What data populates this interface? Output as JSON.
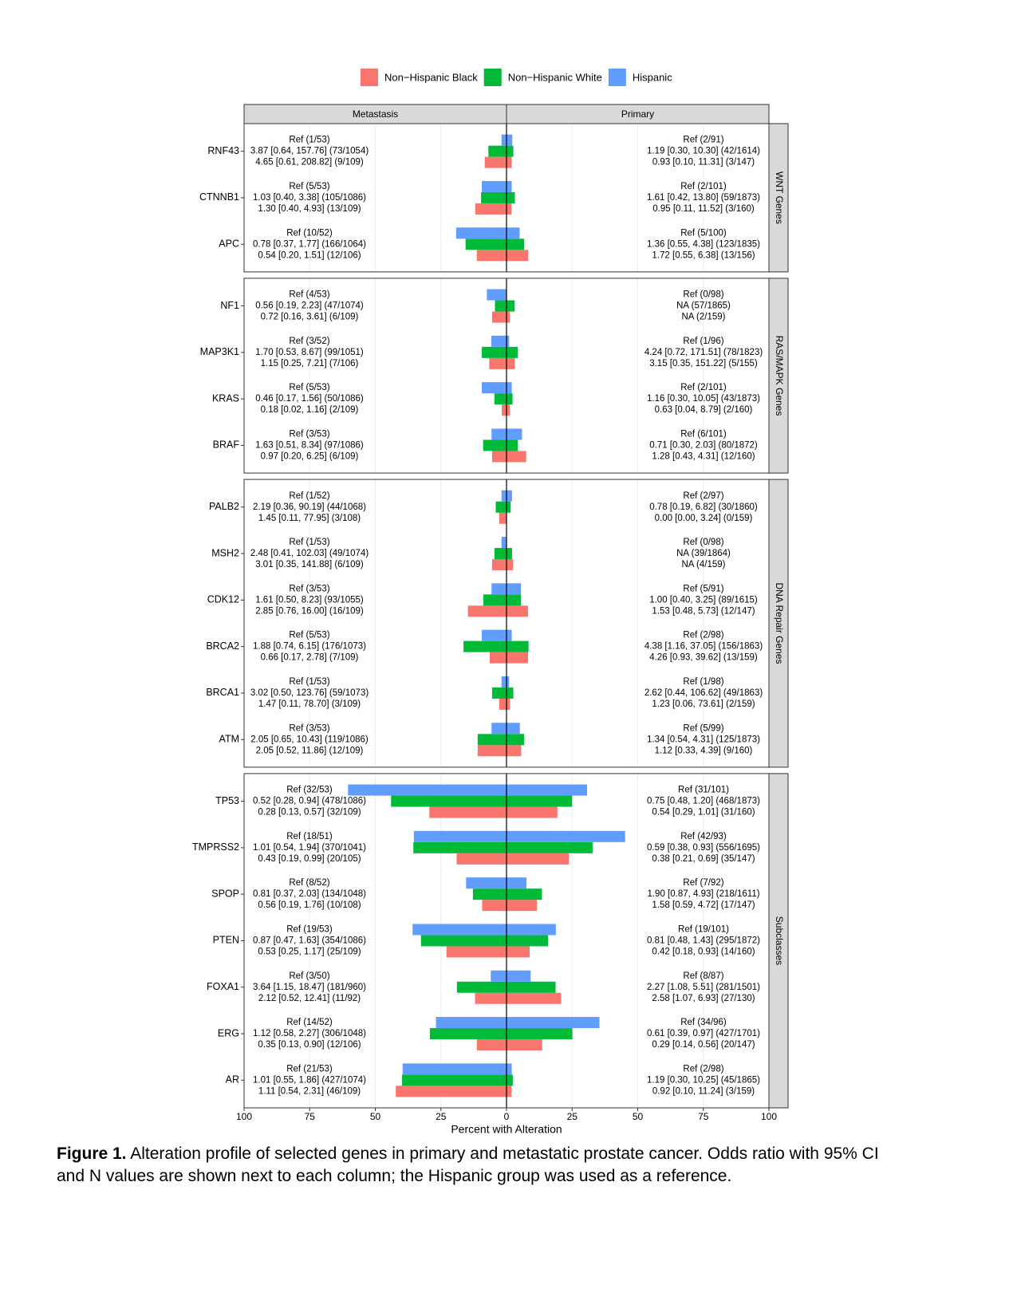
{
  "chart_data": {
    "type": "bar",
    "orientation": "horizontal",
    "legend": "top",
    "grid": true,
    "xlabel": "Percent with Alteration",
    "series": [
      {
        "name": "Non−Hispanic Black",
        "color": "#F8766D"
      },
      {
        "name": "Non−Hispanic White",
        "color": "#00BA38"
      },
      {
        "name": "Hispanic",
        "color": "#619CFF"
      }
    ],
    "columns": [
      {
        "name": "Metastasis",
        "xlim": [
          100,
          0
        ],
        "xticks": [
          100,
          75,
          50,
          25
        ]
      },
      {
        "name": "Primary",
        "xlim": [
          0,
          100
        ],
        "xticks": [
          0,
          25,
          50,
          75,
          100
        ]
      }
    ],
    "panels": [
      {
        "name": "WNT Genes",
        "genes": [
          {
            "name": "RNF43",
            "values": [
              [
                8.3,
                6.9,
                1.9
              ],
              [
                2.0,
                2.6,
                2.2
              ]
            ],
            "labels": [
              [
                "Ref (1/53)",
                "3.87 [0.64, 157.76] (73/1054)",
                "4.65 [0.61, 208.82] (9/109)"
              ],
              [
                "Ref (2/91)",
                "1.19 [0.30, 10.30] (42/1614)",
                "0.93 [0.10, 11.31] (3/147)"
              ]
            ]
          },
          {
            "name": "CTNNB1",
            "values": [
              [
                11.9,
                9.7,
                9.4
              ],
              [
                1.9,
                3.2,
                2.0
              ]
            ],
            "labels": [
              [
                "Ref (5/53)",
                "1.03 [0.40, 3.38] (105/1086)",
                "1.30 [0.40, 4.93] (13/109)"
              ],
              [
                "Ref (2/101)",
                "1.61 [0.42, 13.80] (59/1873)",
                "0.95 [0.11, 11.52] (3/160)"
              ]
            ]
          },
          {
            "name": "APC",
            "values": [
              [
                11.3,
                15.6,
                19.2
              ],
              [
                8.3,
                6.7,
                5.0
              ]
            ],
            "labels": [
              [
                "Ref (10/52)",
                "0.78 [0.37, 1.77] (166/1064)",
                "0.54 [0.20, 1.51] (12/106)"
              ],
              [
                "Ref (5/100)",
                "1.36 [0.55, 4.38] (123/1835)",
                "1.72 [0.55, 6.38] (13/156)"
              ]
            ]
          }
        ]
      },
      {
        "name": "RAS/MAPK Genes",
        "genes": [
          {
            "name": "NF1",
            "values": [
              [
                5.5,
                4.4,
                7.5
              ],
              [
                1.3,
                3.1,
                0
              ]
            ],
            "labels": [
              [
                "Ref (4/53)",
                "0.56 [0.19, 2.23] (47/1074)",
                "0.72 [0.16, 3.61] (6/109)"
              ],
              [
                "Ref (0/98)",
                "NA (57/1865)",
                "NA (2/159)"
              ]
            ]
          },
          {
            "name": "MAP3K1",
            "values": [
              [
                6.6,
                9.4,
                5.8
              ],
              [
                3.2,
                4.3,
                1.0
              ]
            ],
            "labels": [
              [
                "Ref (3/52)",
                "1.70 [0.53, 8.67] (99/1051)",
                "1.15 [0.25, 7.21] (7/106)"
              ],
              [
                "Ref (1/96)",
                "4.24 [0.72, 171.51] (78/1823)",
                "3.15 [0.35, 151.22] (5/155)"
              ]
            ]
          },
          {
            "name": "KRAS",
            "values": [
              [
                1.8,
                4.6,
                9.4
              ],
              [
                1.3,
                2.3,
                2.0
              ]
            ],
            "labels": [
              [
                "Ref (5/53)",
                "0.46 [0.17, 1.56] (50/1086)",
                "0.18 [0.02, 1.16] (2/109)"
              ],
              [
                "Ref (2/101)",
                "1.16 [0.30, 10.05] (43/1873)",
                "0.63 [0.04, 8.79] (2/160)"
              ]
            ]
          },
          {
            "name": "BRAF",
            "values": [
              [
                5.5,
                8.9,
                5.7
              ],
              [
                7.5,
                4.3,
                5.9
              ]
            ],
            "labels": [
              [
                "Ref (3/53)",
                "1.63 [0.51, 8.34] (97/1086)",
                "0.97 [0.20, 6.25] (6/109)"
              ],
              [
                "Ref (6/101)",
                "0.71 [0.30, 2.03] (80/1872)",
                "1.28 [0.43, 4.31] (12/160)"
              ]
            ]
          }
        ]
      },
      {
        "name": "DNA Repair Genes",
        "genes": [
          {
            "name": "PALB2",
            "values": [
              [
                2.8,
                4.1,
                1.9
              ],
              [
                0,
                1.6,
                2.1
              ]
            ],
            "labels": [
              [
                "Ref (1/52)",
                "2.19 [0.36, 90.19] (44/1068)",
                "1.45 [0.11, 77.95] (3/108)"
              ],
              [
                "Ref (2/97)",
                "0.78 [0.19, 6.82] (30/1860)",
                "0.00 [0.00, 3.24] (0/159)"
              ]
            ]
          },
          {
            "name": "MSH2",
            "values": [
              [
                5.5,
                4.6,
                1.9
              ],
              [
                2.5,
                2.1,
                0
              ]
            ],
            "labels": [
              [
                "Ref (1/53)",
                "2.48 [0.41, 102.03] (49/1074)",
                "3.01 [0.35, 141.88] (6/109)"
              ],
              [
                "Ref (0/98)",
                "NA (39/1864)",
                "NA (4/159)"
              ]
            ]
          },
          {
            "name": "CDK12",
            "values": [
              [
                14.7,
                8.8,
                5.7
              ],
              [
                8.2,
                5.5,
                5.5
              ]
            ],
            "labels": [
              [
                "Ref (3/53)",
                "1.61 [0.50, 8.23] (93/1055)",
                "2.85 [0.76, 16.00] (16/109)"
              ],
              [
                "Ref (5/91)",
                "1.00 [0.40, 3.25] (89/1615)",
                "1.53 [0.48, 5.73] (12/147)"
              ]
            ]
          },
          {
            "name": "BRCA2",
            "values": [
              [
                6.4,
                16.4,
                9.4
              ],
              [
                8.2,
                8.4,
                2.0
              ]
            ],
            "labels": [
              [
                "Ref (5/53)",
                "1.88 [0.74, 6.15] (176/1073)",
                "0.66 [0.17, 2.78] (7/109)"
              ],
              [
                "Ref (2/98)",
                "4.38 [1.16, 37.05] (156/1863)",
                "4.26 [0.93, 39.62] (13/159)"
              ]
            ]
          },
          {
            "name": "BRCA1",
            "values": [
              [
                2.8,
                5.5,
                1.9
              ],
              [
                1.3,
                2.6,
                1.0
              ]
            ],
            "labels": [
              [
                "Ref (1/53)",
                "3.02 [0.50, 123.76] (59/1073)",
                "1.47 [0.11, 78.70] (3/109)"
              ],
              [
                "Ref (1/98)",
                "2.62 [0.44, 106.62] (49/1863)",
                "1.23 [0.06, 73.61] (2/159)"
              ]
            ]
          },
          {
            "name": "ATM",
            "values": [
              [
                11.0,
                11.0,
                5.7
              ],
              [
                5.6,
                6.7,
                5.1
              ]
            ],
            "labels": [
              [
                "Ref (3/53)",
                "2.05 [0.65, 10.43] (119/1086)",
                "2.05 [0.52, 11.86] (12/109)"
              ],
              [
                "Ref (5/99)",
                "1.34 [0.54, 4.31] (125/1873)",
                "1.12 [0.33, 4.39] (9/160)"
              ]
            ]
          }
        ]
      },
      {
        "name": "Subclasses",
        "genes": [
          {
            "name": "TP53",
            "values": [
              [
                29.4,
                44.0,
                60.4
              ],
              [
                19.4,
                25.0,
                30.7
              ]
            ],
            "labels": [
              [
                "Ref (32/53)",
                "0.52 [0.28, 0.94] (478/1086)",
                "0.28 [0.13, 0.57] (32/109)"
              ],
              [
                "Ref (31/101)",
                "0.75 [0.48, 1.20] (468/1873)",
                "0.54 [0.29, 1.01] (31/160)"
              ]
            ]
          },
          {
            "name": "TMPRSS2",
            "values": [
              [
                19.0,
                35.5,
                35.3
              ],
              [
                23.8,
                32.8,
                45.2
              ]
            ],
            "labels": [
              [
                "Ref (18/51)",
                "1.01 [0.54, 1.94] (370/1041)",
                "0.43 [0.19, 0.99] (20/105)"
              ],
              [
                "Ref (42/93)",
                "0.59 [0.38, 0.93] (556/1695)",
                "0.38 [0.21, 0.69] (35/147)"
              ]
            ]
          },
          {
            "name": "SPOP",
            "values": [
              [
                9.3,
                12.8,
                15.4
              ],
              [
                11.6,
                13.5,
                7.6
              ]
            ],
            "labels": [
              [
                "Ref (8/52)",
                "0.81 [0.37, 2.03] (134/1048)",
                "0.56 [0.19, 1.76] (10/108)"
              ],
              [
                "Ref (7/92)",
                "1.90 [0.87, 4.93] (218/1611)",
                "1.58 [0.59, 4.72] (17/147)"
              ]
            ]
          },
          {
            "name": "PTEN",
            "values": [
              [
                22.9,
                32.6,
                35.8
              ],
              [
                8.8,
                15.8,
                18.8
              ]
            ],
            "labels": [
              [
                "Ref (19/53)",
                "0.87 [0.47, 1.63] (354/1086)",
                "0.53 [0.25, 1.17] (25/109)"
              ],
              [
                "Ref (19/101)",
                "0.81 [0.48, 1.43] (295/1872)",
                "0.42 [0.18, 0.93] (14/160)"
              ]
            ]
          },
          {
            "name": "FOXA1",
            "values": [
              [
                12.0,
                18.9,
                6.0
              ],
              [
                20.8,
                18.7,
                9.2
              ]
            ],
            "labels": [
              [
                "Ref (3/50)",
                "3.64 [1.15, 18.47] (181/960)",
                "2.12 [0.52, 12.41] (11/92)"
              ],
              [
                "Ref (8/87)",
                "2.27 [1.08, 5.51] (281/1501)",
                "2.58 [1.07, 6.93] (27/130)"
              ]
            ]
          },
          {
            "name": "ERG",
            "values": [
              [
                11.3,
                29.2,
                26.9
              ],
              [
                13.6,
                25.1,
                35.4
              ]
            ],
            "labels": [
              [
                "Ref (14/52)",
                "1.12 [0.58, 2.27] (306/1048)",
                "0.35 [0.13, 0.90] (12/106)"
              ],
              [
                "Ref (34/96)",
                "0.61 [0.39, 0.97] (427/1701)",
                "0.29 [0.14, 0.56] (20/147)"
              ]
            ]
          },
          {
            "name": "AR",
            "values": [
              [
                42.2,
                39.8,
                39.6
              ],
              [
                1.9,
                2.4,
                2.0
              ]
            ],
            "labels": [
              [
                "Ref (21/53)",
                "1.01 [0.55, 1.86] (427/1074)",
                "1.11 [0.54, 2.31] (46/109)"
              ],
              [
                "Ref (2/98)",
                "1.19 [0.30, 10.25] (45/1865)",
                "0.92 [0.10, 11.24] (3/159)"
              ]
            ]
          }
        ]
      }
    ]
  },
  "caption": {
    "label": "Figure 1.",
    "text": "Alteration profile of selected genes in primary and metastatic prostate cancer. Odds ratio with 95% CI and N values are shown next to each column; the Hispanic group was used as a reference."
  }
}
